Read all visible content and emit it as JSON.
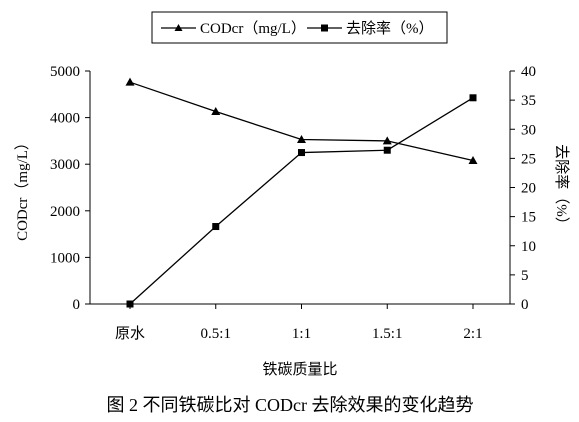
{
  "figure": {
    "caption": "图 2  不同铁碳比对 CODcr 去除效果的变化趋势"
  },
  "chart_data": {
    "type": "line",
    "categories": [
      "原水",
      "0.5:1",
      "1:1",
      "1.5:1",
      "2:1"
    ],
    "xlabel": "铁碳质量比",
    "ylabel_left": "CODcr（mg/L）",
    "ylabel_right": "去除率（%）",
    "ylim_left": [
      0,
      5000
    ],
    "yticks_left": [
      "0",
      "1000",
      "2000",
      "3000",
      "4000",
      "5000"
    ],
    "ylim_right": [
      0,
      40
    ],
    "yticks_right": [
      "0",
      "5",
      "10",
      "15",
      "20",
      "25",
      "30",
      "35",
      "40"
    ],
    "grid": false,
    "legend_position": "top",
    "series": [
      {
        "name": "CODcr（mg/L）",
        "axis": "left",
        "marker": "triangle",
        "color": "#000000",
        "values": [
          4760,
          4130,
          3530,
          3500,
          3080
        ]
      },
      {
        "name": "去除率（%）",
        "axis": "right",
        "marker": "square",
        "color": "#000000",
        "values": [
          0,
          13.3,
          26.0,
          26.4,
          35.4
        ]
      }
    ]
  }
}
